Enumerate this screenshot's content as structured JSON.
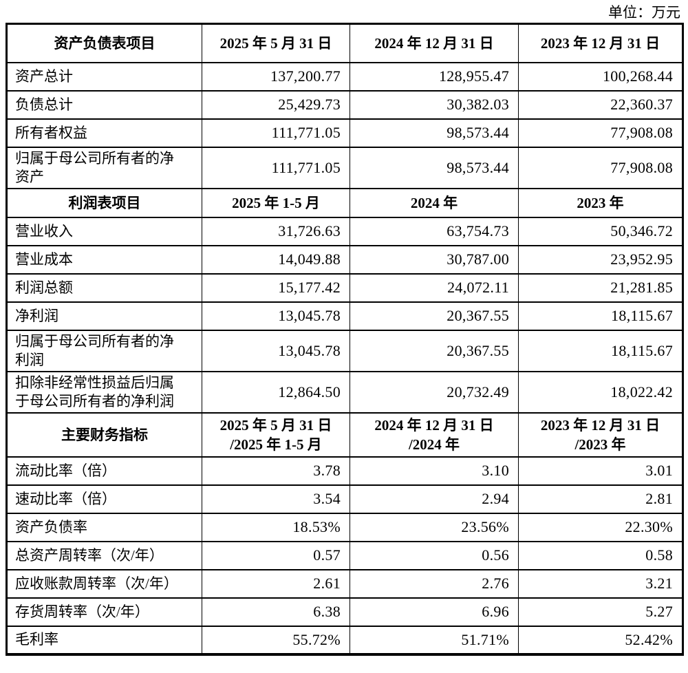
{
  "unit_label": "单位：万元",
  "table": {
    "sections": [
      {
        "header": {
          "title": "资产负债表项目",
          "periods": [
            {
              "lines": [
                "2025 年 5 月 31 日"
              ]
            },
            {
              "lines": [
                "2024 年 12 月 31 日"
              ]
            },
            {
              "lines": [
                "2023 年 12 月 31 日"
              ]
            }
          ]
        },
        "rows": [
          {
            "label": "资产总计",
            "values": [
              "137,200.77",
              "128,955.47",
              "100,268.44"
            ]
          },
          {
            "label": "负债总计",
            "values": [
              "25,429.73",
              "30,382.03",
              "22,360.37"
            ]
          },
          {
            "label": "所有者权益",
            "values": [
              "111,771.05",
              "98,573.44",
              "77,908.08"
            ]
          },
          {
            "label": "归属于母公司所有者的净\n资产",
            "values": [
              "111,771.05",
              "98,573.44",
              "77,908.08"
            ]
          }
        ]
      },
      {
        "header": {
          "title": "利润表项目",
          "periods": [
            {
              "lines": [
                "2025 年 1-5 月"
              ]
            },
            {
              "lines": [
                "2024 年"
              ]
            },
            {
              "lines": [
                "2023 年"
              ]
            }
          ]
        },
        "rows": [
          {
            "label": "营业收入",
            "values": [
              "31,726.63",
              "63,754.73",
              "50,346.72"
            ]
          },
          {
            "label": "营业成本",
            "values": [
              "14,049.88",
              "30,787.00",
              "23,952.95"
            ]
          },
          {
            "label": "利润总额",
            "values": [
              "15,177.42",
              "24,072.11",
              "21,281.85"
            ]
          },
          {
            "label": "净利润",
            "values": [
              "13,045.78",
              "20,367.55",
              "18,115.67"
            ]
          },
          {
            "label": "归属于母公司所有者的净\n利润",
            "values": [
              "13,045.78",
              "20,367.55",
              "18,115.67"
            ]
          },
          {
            "label": "扣除非经常性损益后归属\n于母公司所有者的净利润",
            "values": [
              "12,864.50",
              "20,732.49",
              "18,022.42"
            ]
          }
        ]
      },
      {
        "header": {
          "title": "主要财务指标",
          "periods": [
            {
              "lines": [
                "2025 年 5 月 31 日",
                "/2025 年 1-5 月"
              ]
            },
            {
              "lines": [
                "2024 年 12 月 31 日",
                "/2024 年"
              ]
            },
            {
              "lines": [
                "2023 年 12 月 31 日",
                "/2023 年"
              ]
            }
          ]
        },
        "rows": [
          {
            "label": "流动比率（倍）",
            "values": [
              "3.78",
              "3.10",
              "3.01"
            ]
          },
          {
            "label": "速动比率（倍）",
            "values": [
              "3.54",
              "2.94",
              "2.81"
            ]
          },
          {
            "label": "资产负债率",
            "values": [
              "18.53%",
              "23.56%",
              "22.30%"
            ]
          },
          {
            "label": "总资产周转率（次/年）",
            "values": [
              "0.57",
              "0.56",
              "0.58"
            ]
          },
          {
            "label": "应收账款周转率（次/年）",
            "values": [
              "2.61",
              "2.76",
              "3.21"
            ]
          },
          {
            "label": "存货周转率（次/年）",
            "values": [
              "6.38",
              "6.96",
              "5.27"
            ]
          },
          {
            "label": "毛利率",
            "values": [
              "55.72%",
              "51.71%",
              "52.42%"
            ]
          }
        ]
      }
    ]
  }
}
